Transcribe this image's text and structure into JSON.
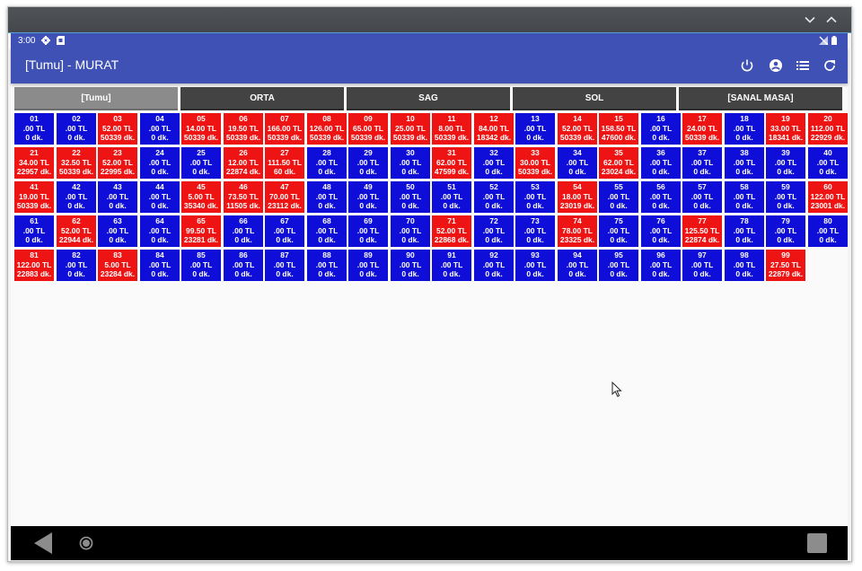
{
  "status_bar": {
    "time": "3:00"
  },
  "app_bar": {
    "title": "[Tumu] - MURAT"
  },
  "tabs": [
    {
      "label": "[Tumu]",
      "active": true
    },
    {
      "label": "ORTA",
      "active": false
    },
    {
      "label": "SAG",
      "active": false
    },
    {
      "label": "SOL",
      "active": false
    },
    {
      "label": "[SANAL MASA]",
      "active": false
    }
  ],
  "colors": {
    "occupied": "#ee1414",
    "empty": "#0e0ed8",
    "app_bar": "#3f51b5"
  },
  "tables": [
    {
      "no": "01",
      "amount": ".00 TL",
      "time": "0 dk.",
      "status": "empty"
    },
    {
      "no": "02",
      "amount": ".00 TL",
      "time": "0 dk.",
      "status": "empty"
    },
    {
      "no": "03",
      "amount": "52.00 TL",
      "time": "50339 dk.",
      "status": "occupied"
    },
    {
      "no": "04",
      "amount": ".00 TL",
      "time": "0 dk.",
      "status": "empty"
    },
    {
      "no": "05",
      "amount": "14.00 TL",
      "time": "50339 dk.",
      "status": "occupied"
    },
    {
      "no": "06",
      "amount": "19.50 TL",
      "time": "50339 dk.",
      "status": "occupied"
    },
    {
      "no": "07",
      "amount": "166.00 TL",
      "time": "50339 dk.",
      "status": "occupied"
    },
    {
      "no": "08",
      "amount": "126.00 TL",
      "time": "50339 dk.",
      "status": "occupied"
    },
    {
      "no": "09",
      "amount": "65.00 TL",
      "time": "50339 dk.",
      "status": "occupied"
    },
    {
      "no": "10",
      "amount": "25.00 TL",
      "time": "50339 dk.",
      "status": "occupied"
    },
    {
      "no": "11",
      "amount": "8.00 TL",
      "time": "50339 dk.",
      "status": "occupied"
    },
    {
      "no": "12",
      "amount": "84.00 TL",
      "time": "18342 dk.",
      "status": "occupied"
    },
    {
      "no": "13",
      "amount": ".00 TL",
      "time": "0 dk.",
      "status": "empty"
    },
    {
      "no": "14",
      "amount": "52.00 TL",
      "time": "50339 dk.",
      "status": "occupied"
    },
    {
      "no": "15",
      "amount": "158.50 TL",
      "time": "47600 dk.",
      "status": "occupied"
    },
    {
      "no": "16",
      "amount": ".00 TL",
      "time": "0 dk.",
      "status": "empty"
    },
    {
      "no": "17",
      "amount": "24.00 TL",
      "time": "50339 dk.",
      "status": "occupied"
    },
    {
      "no": "18",
      "amount": ".00 TL",
      "time": "0 dk.",
      "status": "empty"
    },
    {
      "no": "19",
      "amount": "33.00 TL",
      "time": "18341 dk.",
      "status": "occupied"
    },
    {
      "no": "20",
      "amount": "112.00 TL",
      "time": "22929 dk.",
      "status": "occupied"
    },
    {
      "no": "21",
      "amount": "34.00 TL",
      "time": "22957 dk.",
      "status": "occupied"
    },
    {
      "no": "22",
      "amount": "32.50 TL",
      "time": "50339 dk.",
      "status": "occupied"
    },
    {
      "no": "23",
      "amount": "52.00 TL",
      "time": "22995 dk.",
      "status": "occupied"
    },
    {
      "no": "24",
      "amount": ".00 TL",
      "time": "0 dk.",
      "status": "empty"
    },
    {
      "no": "25",
      "amount": ".00 TL",
      "time": "0 dk.",
      "status": "empty"
    },
    {
      "no": "26",
      "amount": "12.00 TL",
      "time": "22874 dk.",
      "status": "occupied"
    },
    {
      "no": "27",
      "amount": "111.50 TL",
      "time": "60 dk.",
      "status": "occupied"
    },
    {
      "no": "28",
      "amount": ".00 TL",
      "time": "0 dk.",
      "status": "empty"
    },
    {
      "no": "29",
      "amount": ".00 TL",
      "time": "0 dk.",
      "status": "empty"
    },
    {
      "no": "30",
      "amount": ".00 TL",
      "time": "0 dk.",
      "status": "empty"
    },
    {
      "no": "31",
      "amount": "62.00 TL",
      "time": "47599 dk.",
      "status": "occupied"
    },
    {
      "no": "32",
      "amount": ".00 TL",
      "time": "0 dk.",
      "status": "empty"
    },
    {
      "no": "33",
      "amount": "30.00 TL",
      "time": "50339 dk.",
      "status": "occupied"
    },
    {
      "no": "34",
      "amount": ".00 TL",
      "time": "0 dk.",
      "status": "empty"
    },
    {
      "no": "35",
      "amount": "62.00 TL",
      "time": "23024 dk.",
      "status": "occupied"
    },
    {
      "no": "36",
      "amount": ".00 TL",
      "time": "0 dk.",
      "status": "empty"
    },
    {
      "no": "37",
      "amount": ".00 TL",
      "time": "0 dk.",
      "status": "empty"
    },
    {
      "no": "38",
      "amount": ".00 TL",
      "time": "0 dk.",
      "status": "empty"
    },
    {
      "no": "39",
      "amount": ".00 TL",
      "time": "0 dk.",
      "status": "empty"
    },
    {
      "no": "40",
      "amount": ".00 TL",
      "time": "0 dk.",
      "status": "empty"
    },
    {
      "no": "41",
      "amount": "19.00 TL",
      "time": "50339 dk.",
      "status": "occupied"
    },
    {
      "no": "42",
      "amount": ".00 TL",
      "time": "0 dk.",
      "status": "empty"
    },
    {
      "no": "43",
      "amount": ".00 TL",
      "time": "0 dk.",
      "status": "empty"
    },
    {
      "no": "44",
      "amount": ".00 TL",
      "time": "0 dk.",
      "status": "empty"
    },
    {
      "no": "45",
      "amount": "5.00 TL",
      "time": "35340 dk.",
      "status": "occupied"
    },
    {
      "no": "46",
      "amount": "73.50 TL",
      "time": "11505 dk.",
      "status": "occupied"
    },
    {
      "no": "47",
      "amount": "70.00 TL",
      "time": "23112 dk.",
      "status": "occupied"
    },
    {
      "no": "48",
      "amount": ".00 TL",
      "time": "0 dk.",
      "status": "empty"
    },
    {
      "no": "49",
      "amount": ".00 TL",
      "time": "0 dk.",
      "status": "empty"
    },
    {
      "no": "50",
      "amount": ".00 TL",
      "time": "0 dk.",
      "status": "empty"
    },
    {
      "no": "51",
      "amount": ".00 TL",
      "time": "0 dk.",
      "status": "empty"
    },
    {
      "no": "52",
      "amount": ".00 TL",
      "time": "0 dk.",
      "status": "empty"
    },
    {
      "no": "53",
      "amount": ".00 TL",
      "time": "0 dk.",
      "status": "empty"
    },
    {
      "no": "54",
      "amount": "18.00 TL",
      "time": "23019 dk.",
      "status": "occupied"
    },
    {
      "no": "55",
      "amount": ".00 TL",
      "time": "0 dk.",
      "status": "empty"
    },
    {
      "no": "56",
      "amount": ".00 TL",
      "time": "0 dk.",
      "status": "empty"
    },
    {
      "no": "57",
      "amount": ".00 TL",
      "time": "0 dk.",
      "status": "empty"
    },
    {
      "no": "58",
      "amount": ".00 TL",
      "time": "0 dk.",
      "status": "empty"
    },
    {
      "no": "59",
      "amount": ".00 TL",
      "time": "0 dk.",
      "status": "empty"
    },
    {
      "no": "60",
      "amount": "122.00 TL",
      "time": "23001 dk.",
      "status": "occupied"
    },
    {
      "no": "61",
      "amount": ".00 TL",
      "time": "0 dk.",
      "status": "empty"
    },
    {
      "no": "62",
      "amount": "52.00 TL",
      "time": "22944 dk.",
      "status": "occupied"
    },
    {
      "no": "63",
      "amount": ".00 TL",
      "time": "0 dk.",
      "status": "empty"
    },
    {
      "no": "64",
      "amount": ".00 TL",
      "time": "0 dk.",
      "status": "empty"
    },
    {
      "no": "65",
      "amount": "99.50 TL",
      "time": "23281 dk.",
      "status": "occupied"
    },
    {
      "no": "66",
      "amount": ".00 TL",
      "time": "0 dk.",
      "status": "empty"
    },
    {
      "no": "67",
      "amount": ".00 TL",
      "time": "0 dk.",
      "status": "empty"
    },
    {
      "no": "68",
      "amount": ".00 TL",
      "time": "0 dk.",
      "status": "empty"
    },
    {
      "no": "69",
      "amount": ".00 TL",
      "time": "0 dk.",
      "status": "empty"
    },
    {
      "no": "70",
      "amount": ".00 TL",
      "time": "0 dk.",
      "status": "empty"
    },
    {
      "no": "71",
      "amount": "52.00 TL",
      "time": "22868 dk.",
      "status": "occupied"
    },
    {
      "no": "72",
      "amount": ".00 TL",
      "time": "0 dk.",
      "status": "empty"
    },
    {
      "no": "73",
      "amount": ".00 TL",
      "time": "0 dk.",
      "status": "empty"
    },
    {
      "no": "74",
      "amount": "78.00 TL",
      "time": "23325 dk.",
      "status": "occupied"
    },
    {
      "no": "75",
      "amount": ".00 TL",
      "time": "0 dk.",
      "status": "empty"
    },
    {
      "no": "76",
      "amount": ".00 TL",
      "time": "0 dk.",
      "status": "empty"
    },
    {
      "no": "77",
      "amount": "125.50 TL",
      "time": "22874 dk.",
      "status": "occupied"
    },
    {
      "no": "78",
      "amount": ".00 TL",
      "time": "0 dk.",
      "status": "empty"
    },
    {
      "no": "79",
      "amount": ".00 TL",
      "time": "0 dk.",
      "status": "empty"
    },
    {
      "no": "80",
      "amount": ".00 TL",
      "time": "0 dk.",
      "status": "empty"
    },
    {
      "no": "81",
      "amount": "122.00 TL",
      "time": "22883 dk.",
      "status": "occupied"
    },
    {
      "no": "82",
      "amount": ".00 TL",
      "time": "0 dk.",
      "status": "empty"
    },
    {
      "no": "83",
      "amount": "5.00 TL",
      "time": "23284 dk.",
      "status": "occupied"
    },
    {
      "no": "84",
      "amount": ".00 TL",
      "time": "0 dk.",
      "status": "empty"
    },
    {
      "no": "85",
      "amount": ".00 TL",
      "time": "0 dk.",
      "status": "empty"
    },
    {
      "no": "86",
      "amount": ".00 TL",
      "time": "0 dk.",
      "status": "empty"
    },
    {
      "no": "87",
      "amount": ".00 TL",
      "time": "0 dk.",
      "status": "empty"
    },
    {
      "no": "88",
      "amount": ".00 TL",
      "time": "0 dk.",
      "status": "empty"
    },
    {
      "no": "89",
      "amount": ".00 TL",
      "time": "0 dk.",
      "status": "empty"
    },
    {
      "no": "90",
      "amount": ".00 TL",
      "time": "0 dk.",
      "status": "empty"
    },
    {
      "no": "91",
      "amount": ".00 TL",
      "time": "0 dk.",
      "status": "empty"
    },
    {
      "no": "92",
      "amount": ".00 TL",
      "time": "0 dk.",
      "status": "empty"
    },
    {
      "no": "93",
      "amount": ".00 TL",
      "time": "0 dk.",
      "status": "empty"
    },
    {
      "no": "94",
      "amount": ".00 TL",
      "time": "0 dk.",
      "status": "empty"
    },
    {
      "no": "95",
      "amount": ".00 TL",
      "time": "0 dk.",
      "status": "empty"
    },
    {
      "no": "96",
      "amount": ".00 TL",
      "time": "0 dk.",
      "status": "empty"
    },
    {
      "no": "97",
      "amount": ".00 TL",
      "time": "0 dk.",
      "status": "empty"
    },
    {
      "no": "98",
      "amount": ".00 TL",
      "time": "0 dk.",
      "status": "empty"
    },
    {
      "no": "99",
      "amount": "27.50 TL",
      "time": "22879 dk.",
      "status": "occupied"
    }
  ]
}
